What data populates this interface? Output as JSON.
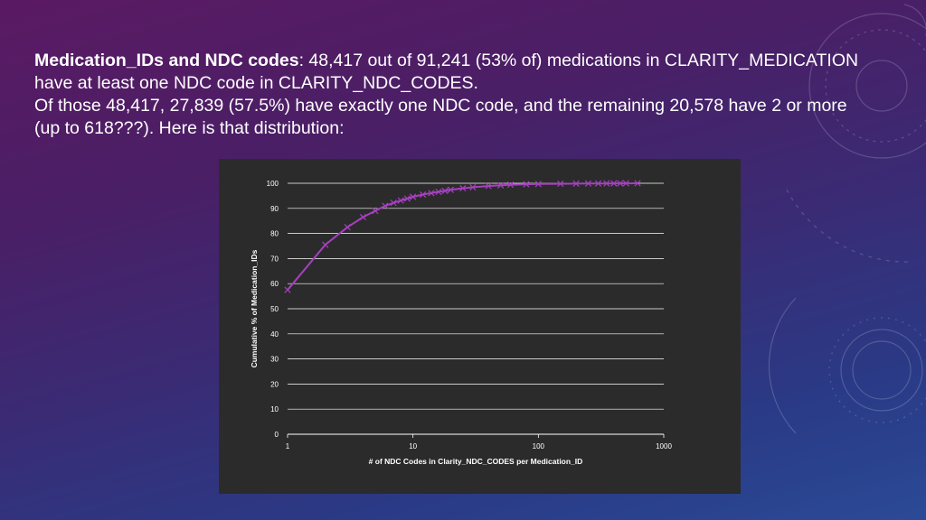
{
  "slide": {
    "line1_bold": "Medication_IDs and NDC codes",
    "line1_rest": ": 48,417 out of 91,241 (53% of) medications in CLARITY_MEDICATION",
    "line2": "have at least one NDC code in CLARITY_NDC_CODES.",
    "line3": "Of those 48,417, 27,839 (57.5%) have exactly one NDC code, and the remaining 20,578 have 2 or more",
    "line4": "(up to 618???).  Here is that distribution:"
  },
  "colors": {
    "series": "#a640c0",
    "chart_background": "#2b2b2b",
    "gridline": "#ffffff"
  },
  "chart_data": {
    "type": "line",
    "title": "",
    "xlabel": "# of NDC Codes in Clarity_NDC_CODES per Medication_ID",
    "ylabel": "Cumulative % of Medication_IDs",
    "xscale": "log",
    "xlim": [
      1,
      1000
    ],
    "ylim": [
      0,
      100
    ],
    "x_ticks": [
      "1",
      "10",
      "100",
      "1000"
    ],
    "y_ticks": [
      "0",
      "10",
      "20",
      "30",
      "40",
      "50",
      "60",
      "70",
      "80",
      "90",
      "100"
    ],
    "grid": "horizontal",
    "legend": "none",
    "marker": "x",
    "series": [
      {
        "x": [
          1,
          2,
          3,
          4,
          5,
          6,
          7,
          8,
          9,
          10,
          12,
          14,
          16,
          18,
          20,
          25,
          30,
          40,
          50,
          60,
          80,
          100,
          150,
          200,
          250,
          300,
          350,
          400,
          450,
          500,
          618
        ],
        "y": [
          57.5,
          75.5,
          82.5,
          86.5,
          89,
          91,
          92.2,
          93.1,
          93.9,
          94.6,
          95.5,
          96.1,
          96.6,
          97,
          97.4,
          98,
          98.4,
          98.9,
          99.2,
          99.4,
          99.6,
          99.7,
          99.8,
          99.85,
          99.9,
          99.92,
          99.94,
          99.96,
          99.97,
          99.98,
          100
        ]
      }
    ]
  }
}
